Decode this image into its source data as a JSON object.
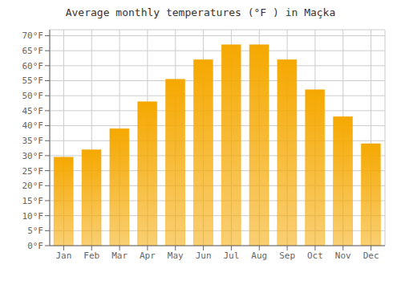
{
  "chart_data": {
    "type": "bar",
    "title": "Average monthly temperatures (°F ) in Maçka",
    "categories": [
      "Jan",
      "Feb",
      "Mar",
      "Apr",
      "May",
      "Jun",
      "Jul",
      "Aug",
      "Sep",
      "Oct",
      "Nov",
      "Dec"
    ],
    "values": [
      29.5,
      32.0,
      39.0,
      48.0,
      55.5,
      62.0,
      67.0,
      67.0,
      62.0,
      52.0,
      43.0,
      34.0
    ],
    "color": "#F5A800",
    "ylim": [
      0,
      72
    ],
    "yticks": [
      {
        "value": 0,
        "label": "0°F"
      },
      {
        "value": 5,
        "label": "5°F"
      },
      {
        "value": 10,
        "label": "10°F"
      },
      {
        "value": 15,
        "label": "15°F"
      },
      {
        "value": 20,
        "label": "20°F"
      },
      {
        "value": 25,
        "label": "25°F"
      },
      {
        "value": 30,
        "label": "30°F"
      },
      {
        "value": 35,
        "label": "35°F"
      },
      {
        "value": 40,
        "label": "40°F"
      },
      {
        "value": 45,
        "label": "45°F"
      },
      {
        "value": 50,
        "label": "50°F"
      },
      {
        "value": 55,
        "label": "55°F"
      },
      {
        "value": 60,
        "label": "60°F"
      },
      {
        "value": 65,
        "label": "65°F"
      },
      {
        "value": 70,
        "label": "70°F"
      }
    ],
    "grid": true
  }
}
